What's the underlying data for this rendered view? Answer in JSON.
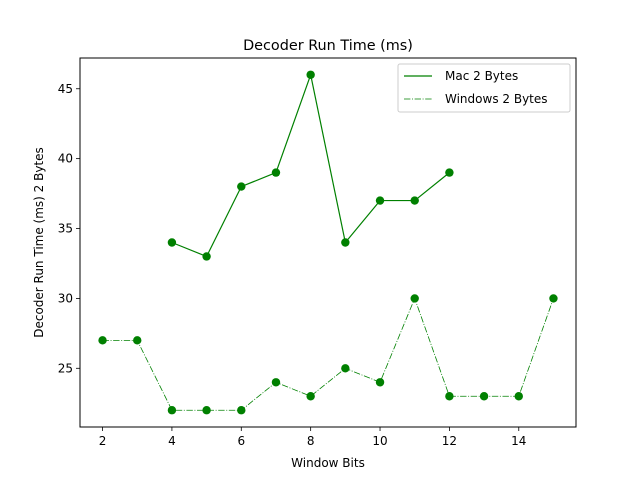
{
  "chart_data": {
    "type": "line",
    "title": "Decoder Run Time (ms)",
    "xlabel": "Window Bits",
    "ylabel": "Decoder Run Time (ms)  2 Bytes",
    "xlim": [
      1.35,
      15.65
    ],
    "ylim": [
      20.8,
      47.2
    ],
    "x_ticks": [
      2,
      4,
      6,
      8,
      10,
      12,
      14
    ],
    "y_ticks": [
      25,
      30,
      35,
      40,
      45
    ],
    "grid": false,
    "legend_position": "top-right",
    "series": [
      {
        "name": "Mac 2 Bytes",
        "color": "#008000",
        "line_style": "solid",
        "marker": "circle",
        "x": [
          4,
          5,
          6,
          7,
          8,
          9,
          10,
          11,
          12
        ],
        "y": [
          34,
          33,
          38,
          39,
          46,
          34,
          37,
          37,
          39
        ]
      },
      {
        "name": "Windows 2 Bytes",
        "color": "#008000",
        "line_style": "dashdot",
        "marker": "circle",
        "x": [
          2,
          3,
          4,
          5,
          6,
          7,
          8,
          9,
          10,
          11,
          12,
          13,
          14,
          15
        ],
        "y": [
          27,
          27,
          22,
          22,
          22,
          24,
          23,
          25,
          24,
          30,
          23,
          23,
          23,
          30
        ]
      }
    ]
  }
}
